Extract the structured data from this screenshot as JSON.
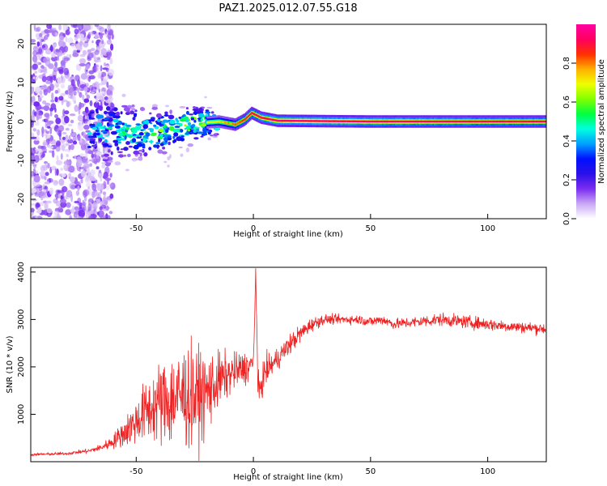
{
  "figure": {
    "title": "PAZ1.2025.012.07.55.G18"
  },
  "chart_data": [
    {
      "type": "heatmap",
      "title": "PAZ1.2025.012.07.55.G18",
      "xlabel": "Height of straight line (km)",
      "ylabel": "Frequency (Hz)",
      "xlim": [
        -95,
        125
      ],
      "ylim": [
        -25,
        25
      ],
      "x_ticks": [
        -50,
        0,
        50,
        100
      ],
      "y_ticks": [
        -20,
        -10,
        0,
        10,
        20
      ],
      "colorbar": {
        "label": "Normalized spectral amplitude",
        "range": [
          0,
          1
        ],
        "ticks": [
          "0.0",
          "0.2",
          "0.4",
          "0.6",
          "0.8"
        ],
        "colors": [
          "#ffffff",
          "#c9a8f5",
          "#7a2df0",
          "#2a10e8",
          "#0010ff",
          "#00a0ff",
          "#00ffe0",
          "#00ff40",
          "#80ff00",
          "#f0ff00",
          "#ffb000",
          "#ff3000",
          "#ff0060",
          "#ff00a0"
        ]
      },
      "ridge": [
        {
          "x": -65,
          "f": -2.0,
          "spread": 4.5,
          "amp": 0.45
        },
        {
          "x": -55,
          "f": -2.5,
          "spread": 4.0,
          "amp": 0.5
        },
        {
          "x": -45,
          "f": -3.0,
          "spread": 3.5,
          "amp": 0.55
        },
        {
          "x": -35,
          "f": -2.0,
          "spread": 3.0,
          "amp": 0.6
        },
        {
          "x": -25,
          "f": -0.5,
          "spread": 2.5,
          "amp": 0.65
        },
        {
          "x": -15,
          "f": 0.0,
          "spread": 1.8,
          "amp": 0.75
        },
        {
          "x": -8,
          "f": -0.8,
          "spread": 1.5,
          "amp": 0.85
        },
        {
          "x": -4,
          "f": 0.5,
          "spread": 1.5,
          "amp": 0.9
        },
        {
          "x": -1,
          "f": 2.2,
          "spread": 1.5,
          "amp": 0.95
        },
        {
          "x": 3,
          "f": 1.0,
          "spread": 1.2,
          "amp": 0.95
        },
        {
          "x": 10,
          "f": 0.2,
          "spread": 1.0,
          "amp": 1.0
        },
        {
          "x": 50,
          "f": 0.0,
          "spread": 1.0,
          "amp": 1.0
        },
        {
          "x": 100,
          "f": 0.0,
          "spread": 1.0,
          "amp": 0.95
        },
        {
          "x": 125,
          "f": 0.0,
          "spread": 1.0,
          "amp": 0.95
        }
      ]
    },
    {
      "type": "line",
      "xlabel": "Height of straight line (km)",
      "ylabel": "SNR (10 * v/v)",
      "xlim": [
        -95,
        125
      ],
      "ylim": [
        0,
        4100
      ],
      "x_ticks": [
        -50,
        0,
        50,
        100
      ],
      "y_ticks": [
        1000,
        2000,
        3000,
        4000
      ],
      "line_color": "#ee2222",
      "series": [
        {
          "x": [
            -95,
            -80,
            -70,
            -65,
            -60,
            -55,
            -50,
            -45,
            -40,
            -35,
            -30,
            -25,
            -20,
            -15,
            -10,
            -5,
            0,
            1,
            2,
            5,
            10,
            15,
            20,
            25,
            30,
            35,
            40,
            45,
            50,
            55,
            60,
            70,
            80,
            90,
            100,
            110,
            120,
            125
          ],
          "y": [
            150,
            170,
            230,
            300,
            420,
            620,
            850,
            1100,
            1250,
            1300,
            1400,
            1350,
            1450,
            1700,
            1850,
            1950,
            2050,
            4000,
            1400,
            1900,
            2150,
            2450,
            2700,
            2900,
            3000,
            3000,
            3000,
            3000,
            2950,
            3000,
            2900,
            2950,
            3000,
            2950,
            2900,
            2850,
            2820,
            2800
          ],
          "noise": [
            20,
            25,
            40,
            60,
            120,
            250,
            400,
            550,
            700,
            850,
            900,
            850,
            700,
            500,
            350,
            300,
            250,
            0,
            300,
            250,
            200,
            180,
            150,
            120,
            90,
            80,
            80,
            80,
            90,
            90,
            90,
            100,
            110,
            110,
            110,
            100,
            100,
            100
          ]
        }
      ]
    }
  ]
}
